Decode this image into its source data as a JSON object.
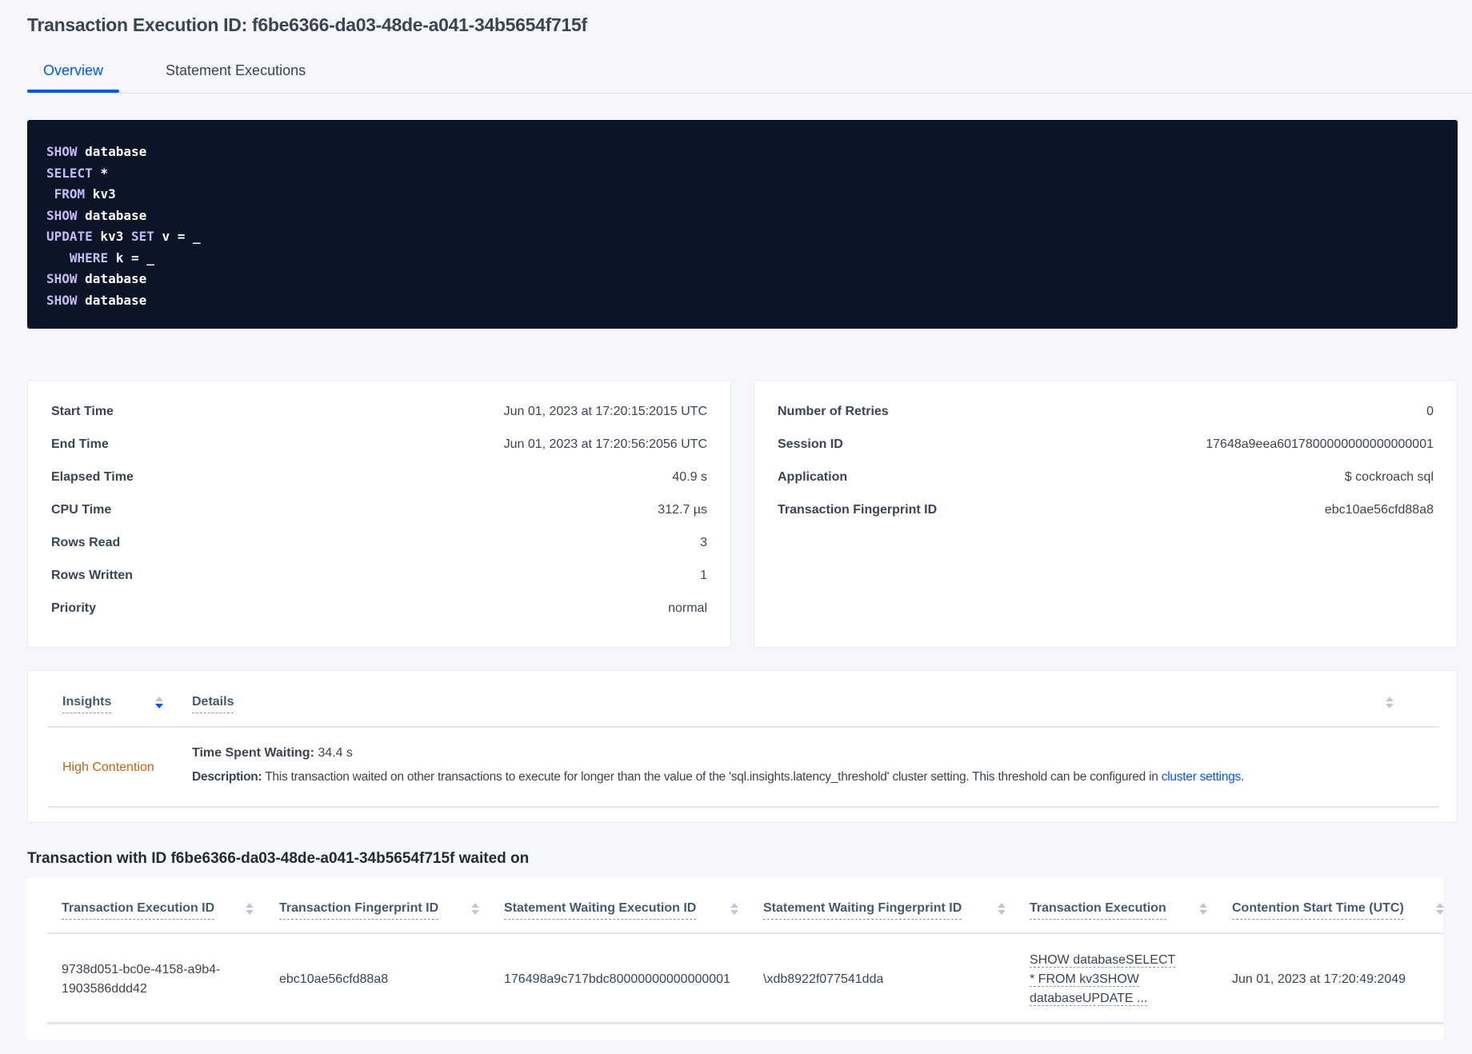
{
  "title": "Transaction Execution ID: f6be6366-da03-48de-a041-34b5654f715f",
  "tabs": [
    {
      "label": "Overview",
      "active": true
    },
    {
      "label": "Statement Executions",
      "active": false
    }
  ],
  "sql": [
    [
      {
        "k": "SHOW"
      },
      {
        "t": " database"
      }
    ],
    [
      {
        "k": "SELECT"
      },
      {
        "t": " *"
      }
    ],
    [
      {
        "t": " "
      },
      {
        "k": "FROM"
      },
      {
        "t": " kv3"
      }
    ],
    [
      {
        "k": "SHOW"
      },
      {
        "t": " database"
      }
    ],
    [
      {
        "k": "UPDATE"
      },
      {
        "t": " kv3 "
      },
      {
        "k": "SET"
      },
      {
        "t": " v = _"
      }
    ],
    [
      {
        "t": "   "
      },
      {
        "k": "WHERE"
      },
      {
        "t": " k = _"
      }
    ],
    [
      {
        "k": "SHOW"
      },
      {
        "t": " database"
      }
    ],
    [
      {
        "k": "SHOW"
      },
      {
        "t": " database"
      }
    ]
  ],
  "left_card": [
    {
      "label": "Start Time",
      "value": "Jun 01, 2023 at 17:20:15:2015 UTC"
    },
    {
      "label": "End Time",
      "value": "Jun 01, 2023 at 17:20:56:2056 UTC"
    },
    {
      "label": "Elapsed Time",
      "value": "40.9 s"
    },
    {
      "label": "CPU Time",
      "value": "312.7 µs"
    },
    {
      "label": "Rows Read",
      "value": "3"
    },
    {
      "label": "Rows Written",
      "value": "1"
    },
    {
      "label": "Priority",
      "value": "normal"
    }
  ],
  "right_card": [
    {
      "label": "Number of Retries",
      "value": "0"
    },
    {
      "label": "Session ID",
      "value": "17648a9eea6017800000000000000001"
    },
    {
      "label": "Application",
      "value": "$ cockroach sql"
    },
    {
      "label": "Transaction Fingerprint ID",
      "value": "ebc10ae56cfd88a8",
      "link": true
    }
  ],
  "insights": {
    "headers": [
      "Insights",
      "Details"
    ],
    "row": {
      "insight": "High Contention",
      "time_label": "Time Spent Waiting:",
      "time_value": " 34.4 s",
      "desc_label": "Description:",
      "desc_text": " This transaction waited on other transactions to execute for longer than the value of the 'sql.insights.latency_threshold' cluster setting. This threshold can be configured in ",
      "desc_link": "cluster settings",
      "desc_end": "."
    }
  },
  "waited_on": {
    "heading": "Transaction with ID f6be6366-da03-48de-a041-34b5654f715f waited on",
    "columns": [
      "Transaction Execution ID",
      "Transaction Fingerprint ID",
      "Statement Waiting Execution ID",
      "Statement Waiting Fingerprint ID",
      "Transaction Execution",
      "Contention Start Time (UTC)"
    ],
    "rows": [
      [
        "9738d051-bc0e-4158-a9b4-1903586ddd42",
        "ebc10ae56cfd88a8",
        "176498a9c717bdc80000000000000001",
        "\\xdb8922f077541dda",
        "SHOW databaseSELECT * FROM kv3SHOW databaseUPDATE ...",
        "Jun 01, 2023 at 17:20:49:2049"
      ]
    ]
  },
  "colors": {
    "accent": "#0055ff",
    "code_bg": "#0c1427",
    "insight_warning": "#c0650e"
  }
}
